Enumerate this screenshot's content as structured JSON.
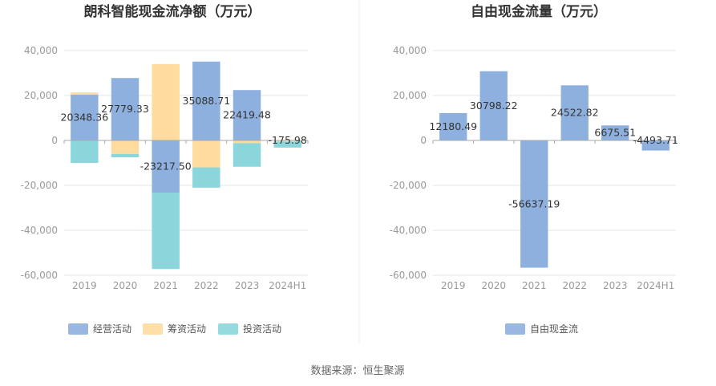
{
  "colors": {
    "operating": "#8eb0de",
    "financing": "#fedb9e",
    "investing": "#8ad6da",
    "free_cash": "#8eb0de",
    "grid": "#e6e6e6",
    "axis": "#aaaaaa",
    "divider": "#eeeeee"
  },
  "chart_data": [
    {
      "type": "bar",
      "stacked": true,
      "title": "朗科智能现金流净额（万元）",
      "categories": [
        "2019",
        "2020",
        "2021",
        "2022",
        "2023",
        "2024H1"
      ],
      "ylim": [
        -60000,
        40000
      ],
      "yticks": [
        40000,
        20000,
        0,
        -20000,
        -40000,
        -60000
      ],
      "ytick_labels": [
        "40,000",
        "20,000",
        "0",
        "-20,000",
        "-40,000",
        "-60,000"
      ],
      "series": [
        {
          "name": "经营活动",
          "color_key": "operating",
          "values": [
            20348.36,
            27779.33,
            -23217.5,
            35088.71,
            22419.48,
            -175.98
          ]
        },
        {
          "name": "筹资活动",
          "color_key": "financing",
          "values": [
            1000,
            -6000,
            34000,
            -12000,
            -1200,
            -300
          ]
        },
        {
          "name": "投资活动",
          "color_key": "investing",
          "values": [
            -10000,
            -1500,
            -34000,
            -9000,
            -10500,
            -2700
          ]
        }
      ],
      "data_labels": [
        "20348.36",
        "27779.33",
        "-23217.50",
        "35088.71",
        "22419.48",
        "-175.98"
      ]
    },
    {
      "type": "bar",
      "title": "自由现金流量（万元）",
      "categories": [
        "2019",
        "2020",
        "2021",
        "2022",
        "2023",
        "2024H1"
      ],
      "ylim": [
        -60000,
        40000
      ],
      "yticks": [
        40000,
        20000,
        0,
        -20000,
        -40000,
        -60000
      ],
      "ytick_labels": [
        "40,000",
        "20,000",
        "0",
        "-20,000",
        "-40,000",
        "-60,000"
      ],
      "series": [
        {
          "name": "自由现金流",
          "color_key": "free_cash",
          "values": [
            12180.49,
            30798.22,
            -56637.19,
            24522.82,
            6675.51,
            -4493.71
          ]
        }
      ],
      "data_labels": [
        "12180.49",
        "30798.22",
        "-56637.19",
        "24522.82",
        "6675.51",
        "-4493.71"
      ]
    }
  ],
  "source_text": "数据来源：恒生聚源"
}
